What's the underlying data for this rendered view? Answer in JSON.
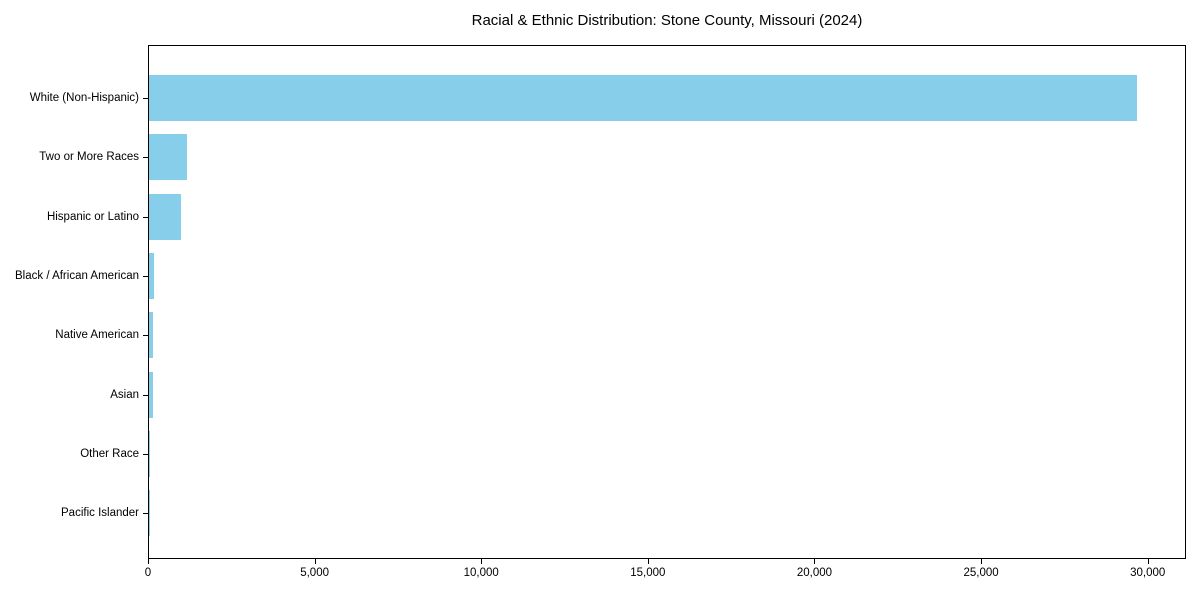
{
  "chart_data": {
    "type": "bar",
    "orientation": "horizontal",
    "title": "Racial & Ethnic Distribution: Stone County, Missouri (2024)",
    "categories": [
      "White (Non-Hispanic)",
      "Two or More Races",
      "Hispanic or Latino",
      "Black / African American",
      "Native American",
      "Asian",
      "Other Race",
      "Pacific Islander"
    ],
    "values": [
      29650,
      1150,
      950,
      150,
      135,
      110,
      40,
      10
    ],
    "xlabel": "",
    "ylabel": "",
    "xlim": [
      0,
      31150
    ],
    "xticks": [
      0,
      5000,
      10000,
      15000,
      20000,
      25000,
      30000
    ],
    "xtick_labels": [
      "0",
      "5,000",
      "10,000",
      "15,000",
      "20,000",
      "25,000",
      "30,000"
    ],
    "bar_color": "#87CEEB",
    "grid": false,
    "legend": null
  }
}
